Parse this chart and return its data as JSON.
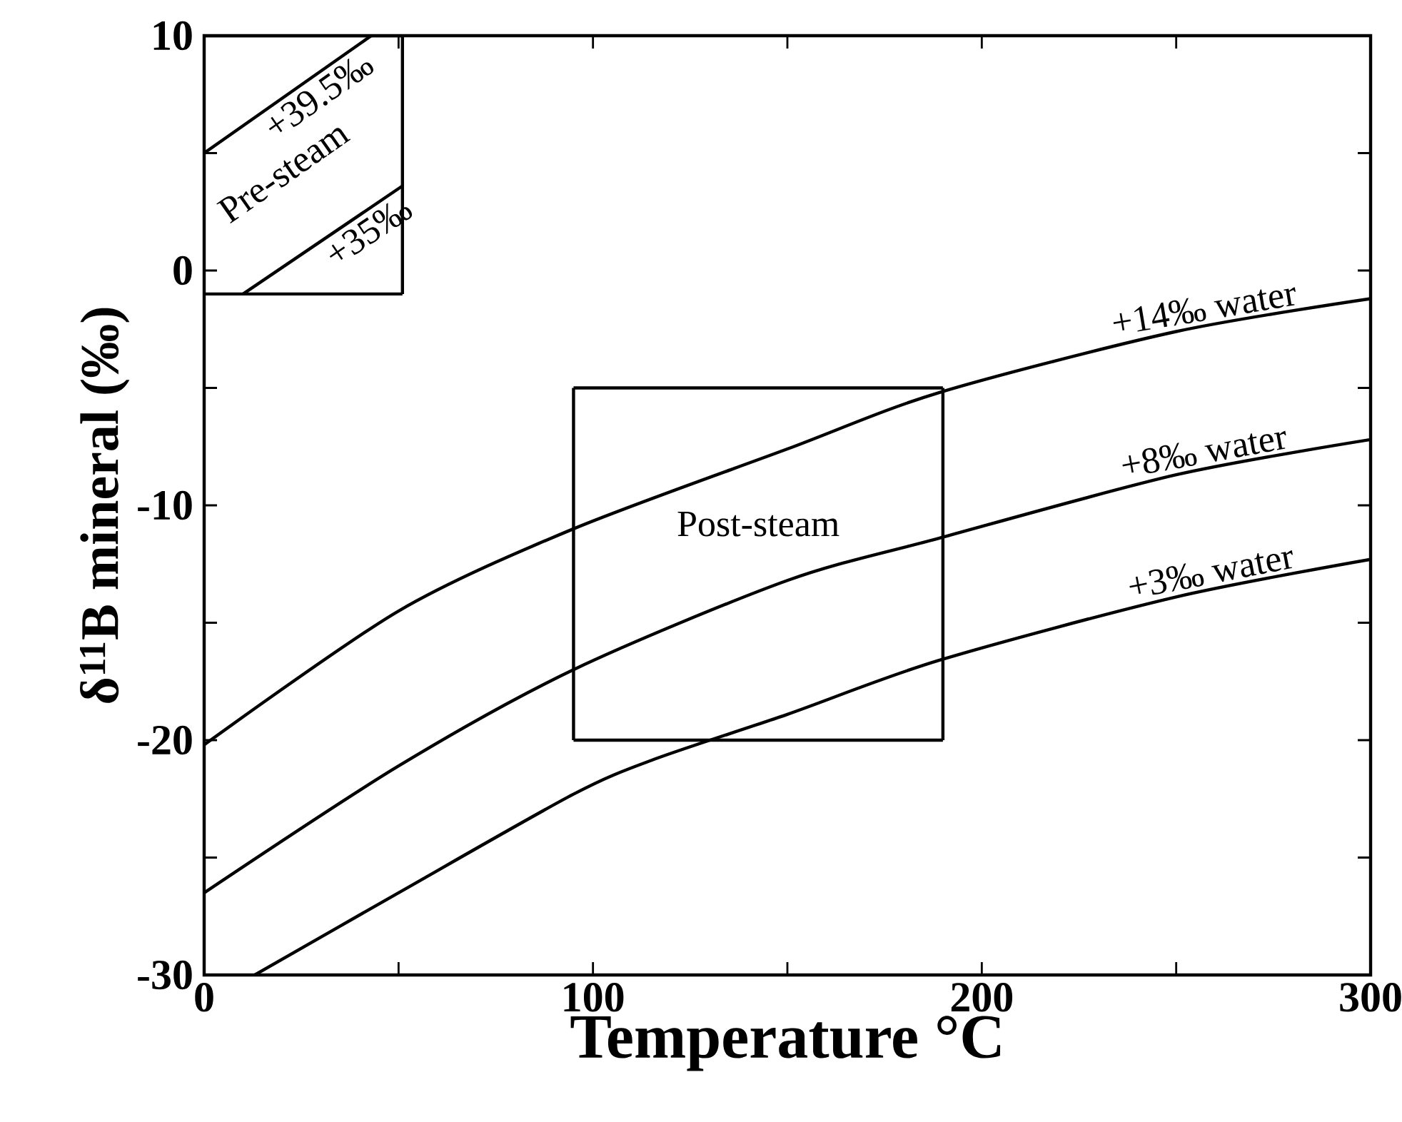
{
  "chart_data": {
    "type": "line",
    "xlabel": "Temperature °C",
    "ylabel": "δ$^{11}$B mineral (‰)",
    "xlim": [
      0,
      300
    ],
    "ylim": [
      -30,
      10
    ],
    "xticks": [
      0,
      100,
      200,
      300
    ],
    "yticks": [
      -30,
      -20,
      -10,
      0,
      10
    ],
    "series": [
      {
        "name": "+39.5‰",
        "color": "#000000",
        "x": [
          0,
          43
        ],
        "values": [
          5,
          10
        ]
      },
      {
        "name": "+35‰",
        "color": "#000000",
        "x": [
          10,
          51
        ],
        "values": [
          -1,
          3.6
        ]
      },
      {
        "color": "#000000",
        "x": [
          0,
          51
        ],
        "values": [
          10,
          10
        ]
      },
      {
        "color": "#000000",
        "x": [
          0,
          51
        ],
        "values": [
          -1,
          -1
        ]
      },
      {
        "color": "#000000",
        "x": [
          51,
          51
        ],
        "values": [
          -1,
          10
        ]
      },
      {
        "name": "+14‰ water",
        "color": "#000000",
        "x": [
          0,
          50,
          95,
          150,
          189,
          250,
          300
        ],
        "values": [
          -20.2,
          -14.5,
          -11.0,
          -7.6,
          -5.2,
          -2.6,
          -1.2
        ]
      },
      {
        "name": "+8‰ water",
        "color": "#000000",
        "x": [
          0,
          50,
          95,
          150,
          189,
          250,
          300
        ],
        "values": [
          -26.5,
          -21.1,
          -17.0,
          -13.2,
          -11.4,
          -8.7,
          -7.2
        ]
      },
      {
        "name": "+3‰ water",
        "color": "#000000",
        "x": [
          13,
          50,
          95,
          116,
          150,
          189,
          250,
          300
        ],
        "values": [
          -30,
          -26.5,
          -22.3,
          -20.8,
          -18.9,
          -16.6,
          -13.9,
          -12.3
        ]
      },
      {
        "color": "#000000",
        "x": [
          95,
          190
        ],
        "values": [
          -5,
          -5
        ]
      },
      {
        "color": "#000000",
        "x": [
          95,
          190
        ],
        "values": [
          -20,
          -20
        ]
      },
      {
        "color": "#000000",
        "x": [
          95,
          95
        ],
        "values": [
          -20,
          -5
        ]
      },
      {
        "color": "#000000",
        "x": [
          190,
          190
        ],
        "values": [
          -20,
          -5
        ]
      }
    ],
    "annotations": [
      "Pre-steam",
      "Post-steam"
    ]
  }
}
